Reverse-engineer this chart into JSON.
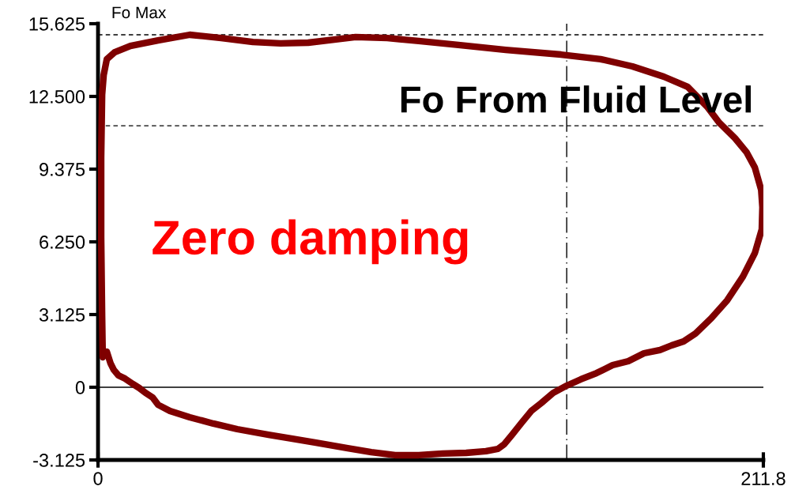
{
  "chart_data": {
    "type": "line",
    "annotations": [
      "Zero damping"
    ],
    "xlim": [
      0,
      211.8
    ],
    "xticks": [
      0,
      211.8
    ],
    "ylim": [
      -3.125,
      15.625
    ],
    "yticks": [
      -3.125,
      0,
      3.125,
      {
        "value": 6.25,
        "label": "6.250"
      },
      9.375,
      {
        "value": 12.5,
        "label": "12.500"
      },
      15.625
    ],
    "grid": false,
    "marker": "none",
    "line_style": "solid",
    "ref_lines": [
      {
        "axis": "y",
        "value": 15.15,
        "label": "Fo Max",
        "color": "#000000",
        "line_style": "dashed"
      },
      {
        "axis": "y",
        "value": 11.24,
        "label": "Fo From Fluid Level",
        "color": "#000000",
        "line_style": "dashed"
      },
      {
        "axis": "x",
        "value": 149.2,
        "color": "#000000",
        "line_style": "dashdot"
      },
      {
        "axis": "y",
        "value": 0,
        "color": "#000000",
        "line_style": "solid"
      }
    ],
    "x": [
      1.5,
      1.3,
      1.0,
      1.0,
      1.3,
      1.8,
      2.8,
      5.3,
      10.3,
      19.1,
      29.2,
      39.2,
      49.3,
      58.1,
      66.9,
      82.0,
      92.1,
      102.1,
      114.7,
      129.8,
      147.4,
      160.0,
      170.1,
      180.1,
      187.7,
      193.9,
      197.7,
      202.8,
      206.5,
      209.1,
      211.1,
      211.5,
      211.3,
      209.1,
      205.3,
      200.3,
      195.2,
      190.2,
      186.4,
      182.6,
      178.9,
      173.8,
      168.8,
      163.8,
      158.7,
      153.7,
      149.2,
      144.9,
      141.1,
      137.9,
      134.8,
      131.8,
      129.3,
      127.3,
      123.5,
      117.2,
      109.7,
      102.1,
      94.6,
      87.0,
      79.5,
      69.4,
      61.9,
      54.3,
      44.3,
      36.7,
      29.2,
      22.9,
      19.1,
      17.4,
      15.1,
      13.1,
      11.1,
      8.6,
      6.5,
      5.0,
      4.0,
      2.8
    ],
    "series": [
      {
        "color": "#7f0000",
        "values": [
          1.29,
          3.06,
          6.45,
          9.85,
          12.57,
          13.42,
          14.1,
          14.4,
          14.67,
          14.91,
          15.15,
          15.01,
          14.84,
          14.78,
          14.81,
          15.05,
          15.01,
          14.88,
          14.71,
          14.5,
          14.3,
          14.1,
          13.79,
          13.35,
          12.91,
          12.06,
          11.38,
          10.7,
          10.09,
          9.44,
          8.49,
          7.74,
          6.79,
          5.77,
          4.76,
          3.74,
          2.96,
          2.31,
          1.97,
          1.8,
          1.6,
          1.46,
          1.12,
          0.95,
          0.61,
          0.34,
          0.07,
          -0.24,
          -0.68,
          -1.02,
          -1.53,
          -2.04,
          -2.45,
          -2.65,
          -2.75,
          -2.82,
          -2.85,
          -2.92,
          -2.92,
          -2.79,
          -2.62,
          -2.38,
          -2.21,
          -2.04,
          -1.8,
          -1.56,
          -1.29,
          -1.02,
          -0.75,
          -0.44,
          -0.24,
          -0.03,
          0.14,
          0.37,
          0.51,
          0.75,
          1.02,
          1.53
        ]
      }
    ]
  }
}
